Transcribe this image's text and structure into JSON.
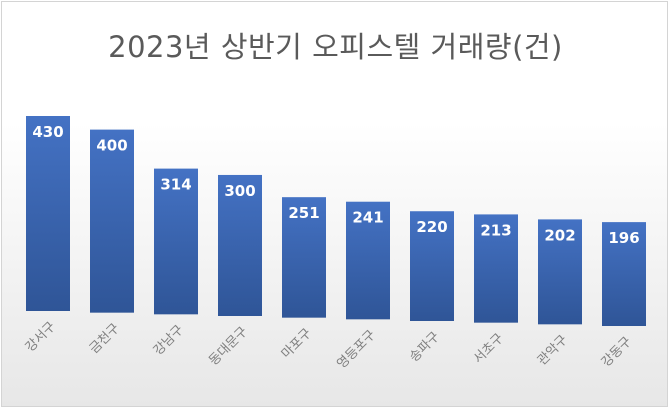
{
  "chart_data": {
    "type": "bar",
    "title": "2023년 상반기 오피스텔 거래량(건)",
    "categories": [
      "강서구",
      "금천구",
      "강남구",
      "동대문구",
      "마포구",
      "영등포구",
      "송파구",
      "서초구",
      "관악구",
      "강동구"
    ],
    "values": [
      430,
      400,
      314,
      300,
      251,
      241,
      220,
      213,
      202,
      196
    ],
    "xlabel": "",
    "ylabel": "",
    "data_labels": true,
    "grid": false,
    "legend": "none",
    "colors": {
      "bar_top": "#4472c4",
      "bar_bottom": "#2f5597",
      "label_text": "#ffffff",
      "title_text": "#5a5a5a",
      "category_text": "#7f7f7f"
    }
  }
}
